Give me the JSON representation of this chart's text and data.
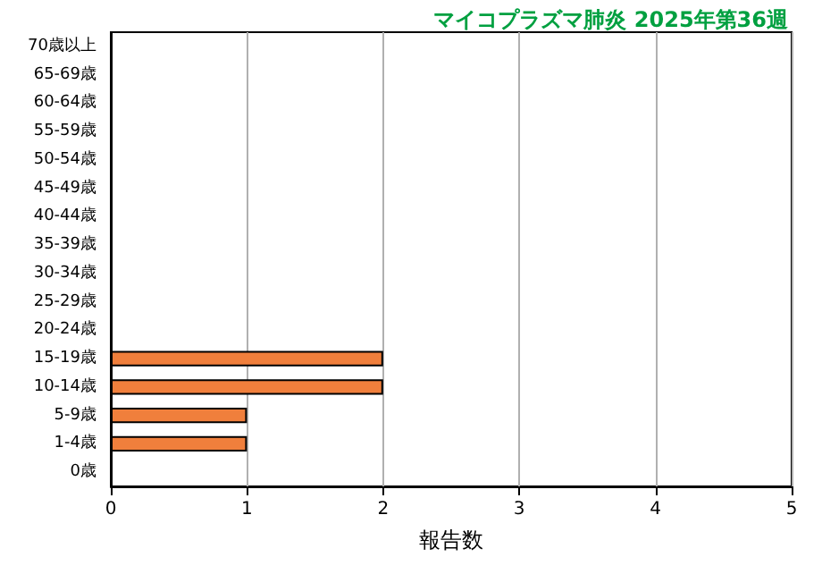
{
  "chart_data": {
    "type": "bar",
    "orientation": "horizontal",
    "title": "マイコプラズマ肺炎 2025年第36週",
    "xlabel": "報告数",
    "categories": [
      "70歳以上",
      "65-69歳",
      "60-64歳",
      "55-59歳",
      "50-54歳",
      "45-49歳",
      "40-44歳",
      "35-39歳",
      "30-34歳",
      "25-29歳",
      "20-24歳",
      "15-19歳",
      "10-14歳",
      "5-9歳",
      "1-4歳",
      "0歳"
    ],
    "values": [
      0,
      0,
      0,
      0,
      0,
      0,
      0,
      0,
      0,
      0,
      0,
      2,
      2,
      1,
      1,
      0
    ],
    "color": "#f07f3c",
    "xlim": [
      0,
      5
    ],
    "xticks": [
      0,
      1,
      2,
      3,
      4,
      5
    ],
    "grid": "x"
  }
}
